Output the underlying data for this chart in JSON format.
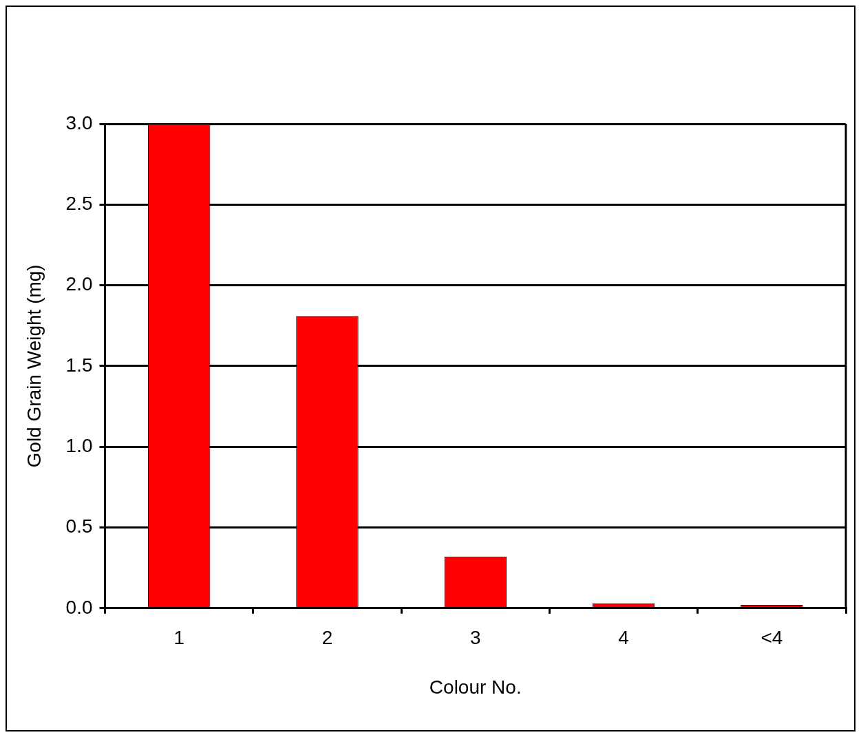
{
  "chart_data": {
    "type": "bar",
    "xlabel": "Colour No.",
    "ylabel": "Gold Grain Weight (mg)",
    "categories": [
      "1",
      "2",
      "3",
      "4",
      "<4"
    ],
    "values": [
      3.0,
      1.81,
      0.32,
      0.03,
      0.02
    ],
    "color": "#ff0000",
    "ylim": [
      0,
      3.0
    ],
    "yticks": [
      {
        "value": 0,
        "label": "0.0"
      },
      {
        "value": 0.5,
        "label": "0.5"
      },
      {
        "value": 1,
        "label": "1.0"
      },
      {
        "value": 1.5,
        "label": "1.5"
      },
      {
        "value": 2,
        "label": "2.0"
      },
      {
        "value": 2.5,
        "label": "2.5"
      },
      {
        "value": 3,
        "label": "3.0"
      }
    ],
    "grid": "y",
    "legend": false
  }
}
